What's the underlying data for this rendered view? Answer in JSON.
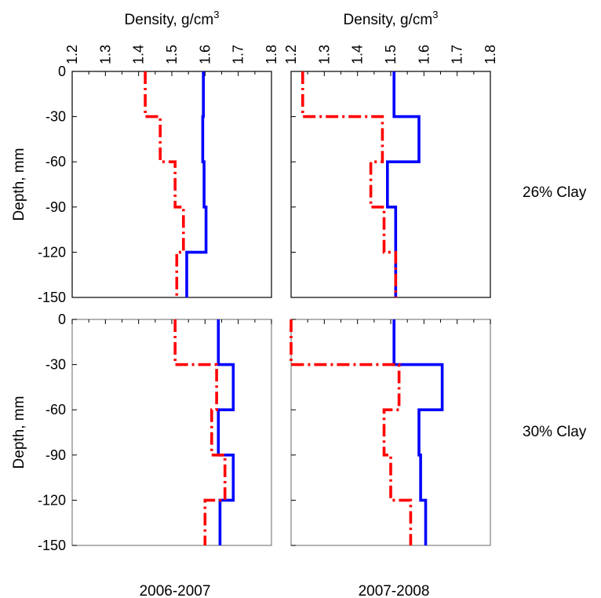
{
  "figure": {
    "x_axis_title": "Density, g/cm",
    "x_axis_title_sup": "3",
    "y_axis_title": "Depth, mm",
    "row_labels": [
      "26% Clay",
      "30% Clay"
    ],
    "col_labels": [
      "2006-2007",
      "2007-2008"
    ],
    "colors": {
      "solid_series": "#0000ff",
      "dashdot_series": "#ff0000",
      "axis": "#000000"
    }
  },
  "chart_data": [
    {
      "type": "line",
      "panel": "26% Clay, 2006-2007",
      "xlabel": "Density, g/cm3",
      "ylabel": "Depth, mm",
      "xlim": [
        1.2,
        1.8
      ],
      "ylim": [
        -150,
        0
      ],
      "xticks": [
        "1.2",
        "1.3",
        "1.4",
        "1.5",
        "1.6",
        "1.7",
        "1.8"
      ],
      "yticks": [
        "0",
        "-30",
        "-60",
        "-90",
        "-120",
        "-150"
      ],
      "series": [
        {
          "style": "solid",
          "color": "#0000ff",
          "depths": [
            0,
            -30,
            -30,
            -60,
            -60,
            -90,
            -90,
            -120,
            -120,
            -150
          ],
          "density": [
            1.595,
            1.595,
            1.593,
            1.593,
            1.597,
            1.597,
            1.603,
            1.603,
            1.545,
            1.545
          ]
        },
        {
          "style": "dashdot",
          "color": "#ff0000",
          "depths": [
            0,
            -30,
            -30,
            -60,
            -60,
            -90,
            -90,
            -120,
            -120,
            -150
          ],
          "density": [
            1.42,
            1.42,
            1.465,
            1.465,
            1.51,
            1.51,
            1.535,
            1.535,
            1.515,
            1.515
          ]
        }
      ]
    },
    {
      "type": "line",
      "panel": "26% Clay, 2007-2008",
      "xlabel": "Density, g/cm3",
      "ylabel": "Depth, mm",
      "xlim": [
        1.2,
        1.8
      ],
      "ylim": [
        -150,
        0
      ],
      "xticks": [
        "1.2",
        "1.3",
        "1.4",
        "1.5",
        "1.6",
        "1.7",
        "1.8"
      ],
      "yticks": [
        "0",
        "-30",
        "-60",
        "-90",
        "-120",
        "-150"
      ],
      "series": [
        {
          "style": "solid",
          "color": "#0000ff",
          "depths": [
            0,
            -30,
            -30,
            -60,
            -60,
            -90,
            -90,
            -120,
            -120,
            -150
          ],
          "density": [
            1.51,
            1.51,
            1.585,
            1.585,
            1.49,
            1.49,
            1.515,
            1.515,
            1.515,
            1.515
          ]
        },
        {
          "style": "dashdot",
          "color": "#ff0000",
          "depths": [
            0,
            -30,
            -30,
            -60,
            -60,
            -90,
            -90,
            -120,
            -120,
            -150
          ],
          "density": [
            1.235,
            1.235,
            1.475,
            1.475,
            1.44,
            1.44,
            1.48,
            1.48,
            1.515,
            1.515
          ]
        }
      ]
    },
    {
      "type": "line",
      "panel": "30% Clay, 2006-2007",
      "xlabel": "Density, g/cm3",
      "ylabel": "Depth, mm",
      "xlim": [
        1.2,
        1.8
      ],
      "ylim": [
        -150,
        0
      ],
      "xticks": [
        "1.2",
        "1.3",
        "1.4",
        "1.5",
        "1.6",
        "1.7",
        "1.8"
      ],
      "yticks": [
        "0",
        "-30",
        "-60",
        "-90",
        "-120",
        "-150"
      ],
      "series": [
        {
          "style": "solid",
          "color": "#0000ff",
          "depths": [
            0,
            -30,
            -30,
            -60,
            -60,
            -90,
            -90,
            -120,
            -120,
            -150
          ],
          "density": [
            1.64,
            1.64,
            1.685,
            1.685,
            1.64,
            1.64,
            1.685,
            1.685,
            1.645,
            1.645
          ]
        },
        {
          "style": "dashdot",
          "color": "#ff0000",
          "depths": [
            0,
            -30,
            -30,
            -60,
            -60,
            -90,
            -90,
            -120,
            -120,
            -150
          ],
          "density": [
            1.51,
            1.51,
            1.635,
            1.635,
            1.62,
            1.62,
            1.66,
            1.66,
            1.6,
            1.6
          ]
        }
      ]
    },
    {
      "type": "line",
      "panel": "30% Clay, 2007-2008",
      "xlabel": "Density, g/cm3",
      "ylabel": "Depth, mm",
      "xlim": [
        1.2,
        1.8
      ],
      "ylim": [
        -150,
        0
      ],
      "xticks": [
        "1.2",
        "1.3",
        "1.4",
        "1.5",
        "1.6",
        "1.7",
        "1.8"
      ],
      "yticks": [
        "0",
        "-30",
        "-60",
        "-90",
        "-120",
        "-150"
      ],
      "series": [
        {
          "style": "solid",
          "color": "#0000ff",
          "depths": [
            0,
            -30,
            -30,
            -60,
            -60,
            -90,
            -90,
            -120,
            -120,
            -150
          ],
          "density": [
            1.51,
            1.51,
            1.655,
            1.655,
            1.585,
            1.585,
            1.59,
            1.59,
            1.605,
            1.605
          ]
        },
        {
          "style": "dashdot",
          "color": "#ff0000",
          "depths": [
            0,
            -30,
            -30,
            -60,
            -60,
            -90,
            -90,
            -120,
            -120,
            -150
          ],
          "density": [
            1.2,
            1.2,
            1.525,
            1.525,
            1.48,
            1.48,
            1.5,
            1.5,
            1.56,
            1.56
          ]
        }
      ]
    }
  ]
}
